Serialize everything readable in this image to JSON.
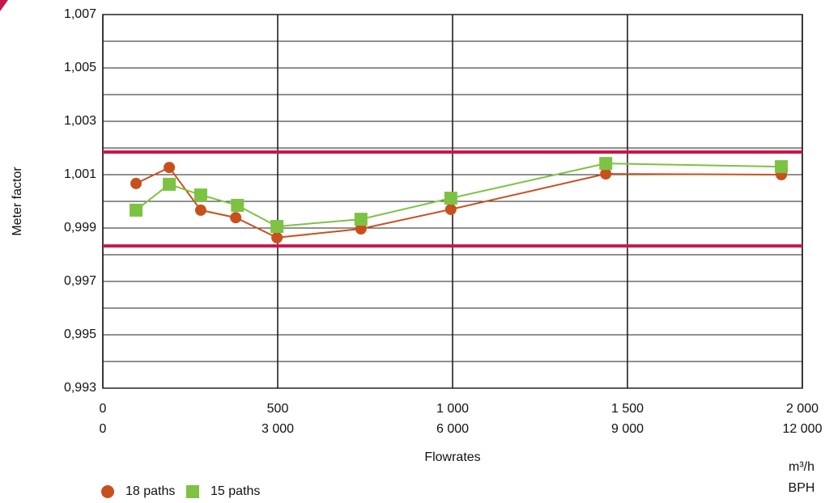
{
  "chart_data": {
    "type": "line",
    "y_label": "Meter factor",
    "x_label": "Flowrates",
    "x_unit": "m³/h",
    "x2_unit": "BPH",
    "xlim": [
      0,
      2000
    ],
    "xticks": [
      0,
      500,
      {
        "value": 1000,
        "label": "1 000"
      },
      {
        "value": 1500,
        "label": "1 500"
      },
      {
        "value": 2000,
        "label": "2 000"
      }
    ],
    "x2lim": [
      0,
      12000
    ],
    "x2ticks": [
      0,
      {
        "value": 3000,
        "label": "3 000"
      },
      {
        "value": 6000,
        "label": "6 000"
      },
      {
        "value": 9000,
        "label": "9 000"
      },
      {
        "value": 12000,
        "label": "12 000"
      }
    ],
    "ylim": [
      0.993,
      1.007
    ],
    "yticks": [
      {
        "value": 0.993,
        "label": "0,993"
      },
      {
        "value": 0.995,
        "label": "0,995"
      },
      {
        "value": 0.997,
        "label": "0,997"
      },
      {
        "value": 0.999,
        "label": "0,999"
      },
      {
        "value": 1.001,
        "label": "1,001"
      },
      {
        "value": 1.003,
        "label": "1,003"
      },
      {
        "value": 1.005,
        "label": "1,005"
      },
      {
        "value": 1.007,
        "label": "1,007"
      }
    ],
    "y_grid": [
      0.994,
      0.996,
      0.998,
      1.0,
      1.002,
      1.004,
      1.006
    ],
    "limit_lines": {
      "color": "#c8174a",
      "values": [
        0.99833,
        1.00185
      ]
    },
    "grid": true,
    "legend": "bottom-left",
    "series": [
      {
        "name": "18 paths",
        "color": "#c8501e",
        "marker": "circle",
        "x": [
          95,
          190,
          280,
          380,
          498,
          738,
          995,
          1438,
          1940
        ],
        "values": [
          1.00067,
          1.00127,
          0.99967,
          0.99939,
          0.99864,
          0.99897,
          0.9997,
          1.00103,
          1.001
        ]
      },
      {
        "name": "15 paths",
        "color": "#7dc242",
        "marker": "square",
        "x": [
          95,
          190,
          280,
          385,
          498,
          738,
          995,
          1438,
          1940
        ],
        "values": [
          0.99967,
          1.00064,
          1.00024,
          0.99985,
          0.99906,
          0.99933,
          1.00012,
          1.00142,
          1.0013
        ]
      }
    ]
  }
}
